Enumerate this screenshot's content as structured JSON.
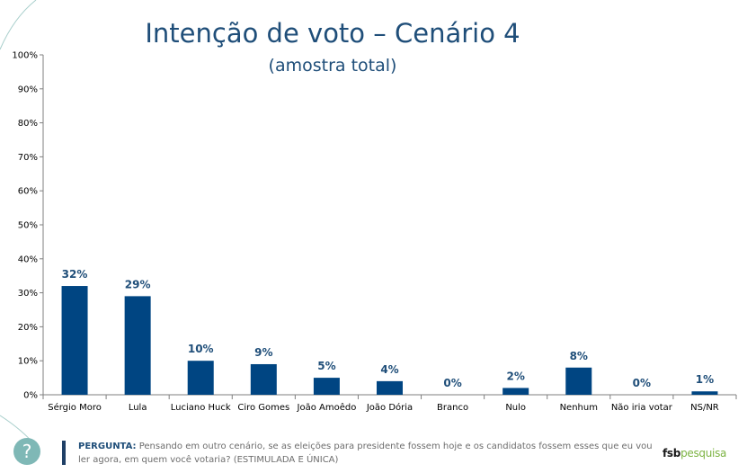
{
  "chart_data": {
    "type": "bar",
    "title": "Intenção de voto – Cenário 4",
    "subtitle": "(amostra total)",
    "categories": [
      "Sérgio Moro",
      "Lula",
      "Luciano Huck",
      "Ciro Gomes",
      "João Amoêdo",
      "João Dória",
      "Branco",
      "Nulo",
      "Nenhum",
      "Não iria votar",
      "NS/NR"
    ],
    "values": [
      32,
      29,
      10,
      9,
      5,
      4,
      0,
      2,
      8,
      0,
      1
    ],
    "value_labels": [
      "32%",
      "29%",
      "10%",
      "9%",
      "5%",
      "4%",
      "0%",
      "2%",
      "8%",
      "0%",
      "1%"
    ],
    "yticks": [
      "0%",
      "10%",
      "20%",
      "30%",
      "40%",
      "50%",
      "60%",
      "70%",
      "80%",
      "90%",
      "100%"
    ],
    "ylim": [
      0,
      100
    ],
    "grid": false,
    "bar_color": "#004582",
    "title_color": "#1f4e79"
  },
  "footer": {
    "question_label": "PERGUNTA:",
    "question_text": " Pensando em outro cenário, se as eleições para presidente fossem hoje e os candidatos fossem esses que eu vou ler agora, em quem você votaria?  (ESTIMULADA E ÚNICA)",
    "help_glyph": "?"
  },
  "logo": {
    "part1": "fsb",
    "part2": "pesquisa"
  }
}
